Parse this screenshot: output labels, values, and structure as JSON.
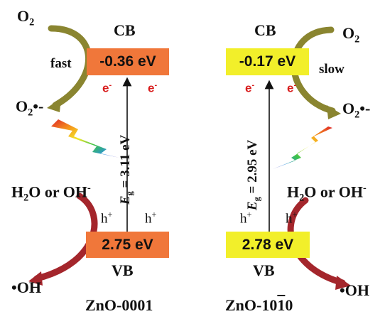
{
  "left": {
    "sample_label": "ZnO-0001",
    "cb_label": "CB",
    "vb_label": "VB",
    "cb_value": "-0.36 eV",
    "vb_value": "2.75 eV",
    "gap_symbol": "E",
    "gap_sub": "g",
    "gap_value": " = 3.11 eV",
    "rate_label": "fast",
    "electron": "e",
    "electron_sup": "-",
    "hole": "h",
    "hole_sup": "+",
    "o2_main": "O",
    "o2_sub": "2",
    "superoxide_main": "O",
    "superoxide_sub": "2",
    "superoxide_sup": "•-",
    "water_text": "H",
    "water_sub": "2",
    "water_rest": "O or OH",
    "water_sup": "-",
    "hydroxyl": "•OH",
    "band_color": "#f0773a"
  },
  "right": {
    "sample_label_main": "ZnO-10",
    "sample_label_bar": "1",
    "sample_label_end": "0",
    "cb_label": "CB",
    "vb_label": "VB",
    "cb_value": "-0.17 eV",
    "vb_value": "2.78 eV",
    "gap_symbol": "E",
    "gap_sub": "g",
    "gap_value": " = 2.95 eV",
    "rate_label": "slow",
    "electron": "e",
    "electron_sup": "-",
    "hole": "h",
    "hole_sup": "+",
    "o2_main": "O",
    "o2_sub": "2",
    "superoxide_main": "O",
    "superoxide_sub": "2",
    "superoxide_sup": "•-",
    "water_text": "H",
    "water_sub": "2",
    "water_rest": "O or OH",
    "water_sup": "-",
    "hydroxyl": "•OH",
    "band_color": "#f2ef2a"
  }
}
